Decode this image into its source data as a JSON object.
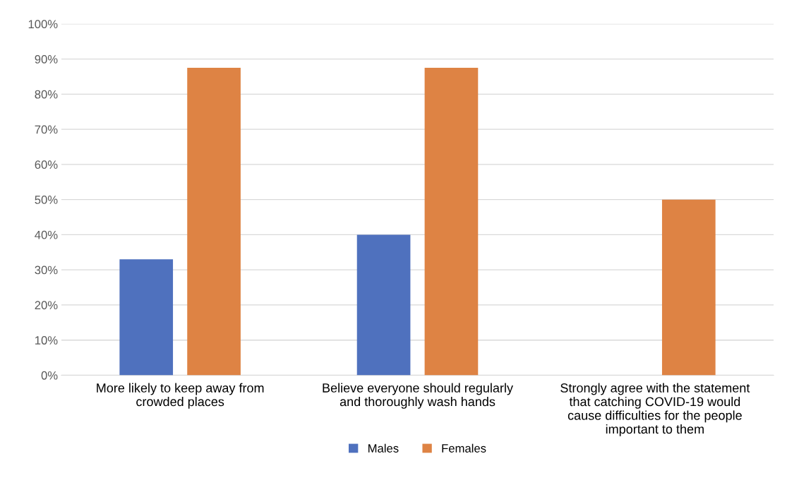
{
  "chart_data": {
    "type": "bar",
    "categories": [
      "More likely to keep away from\ncrowded places",
      "Believe everyone should regularly\nand thoroughly wash hands",
      "Strongly agree with the statement\nthat catching COVID-19 would\ncause difficulties for the people\nimportant to them"
    ],
    "series": [
      {
        "name": "Males",
        "color": "#4f71be",
        "values": [
          33,
          40,
          0
        ]
      },
      {
        "name": "Females",
        "color": "#de8344",
        "values": [
          87.5,
          87.5,
          50
        ]
      }
    ],
    "ylim": [
      0,
      100
    ],
    "yticks": [
      {
        "value": 0,
        "label": "0%"
      },
      {
        "value": 10,
        "label": "10%"
      },
      {
        "value": 20,
        "label": "20%"
      },
      {
        "value": 30,
        "label": "30%"
      },
      {
        "value": 40,
        "label": "40%"
      },
      {
        "value": 50,
        "label": "50%"
      },
      {
        "value": 60,
        "label": "60%"
      },
      {
        "value": 70,
        "label": "70%"
      },
      {
        "value": 80,
        "label": "80%"
      },
      {
        "value": 90,
        "label": "90%"
      },
      {
        "value": 100,
        "label": "100%"
      }
    ],
    "grid": "y",
    "legend": "bottom"
  }
}
